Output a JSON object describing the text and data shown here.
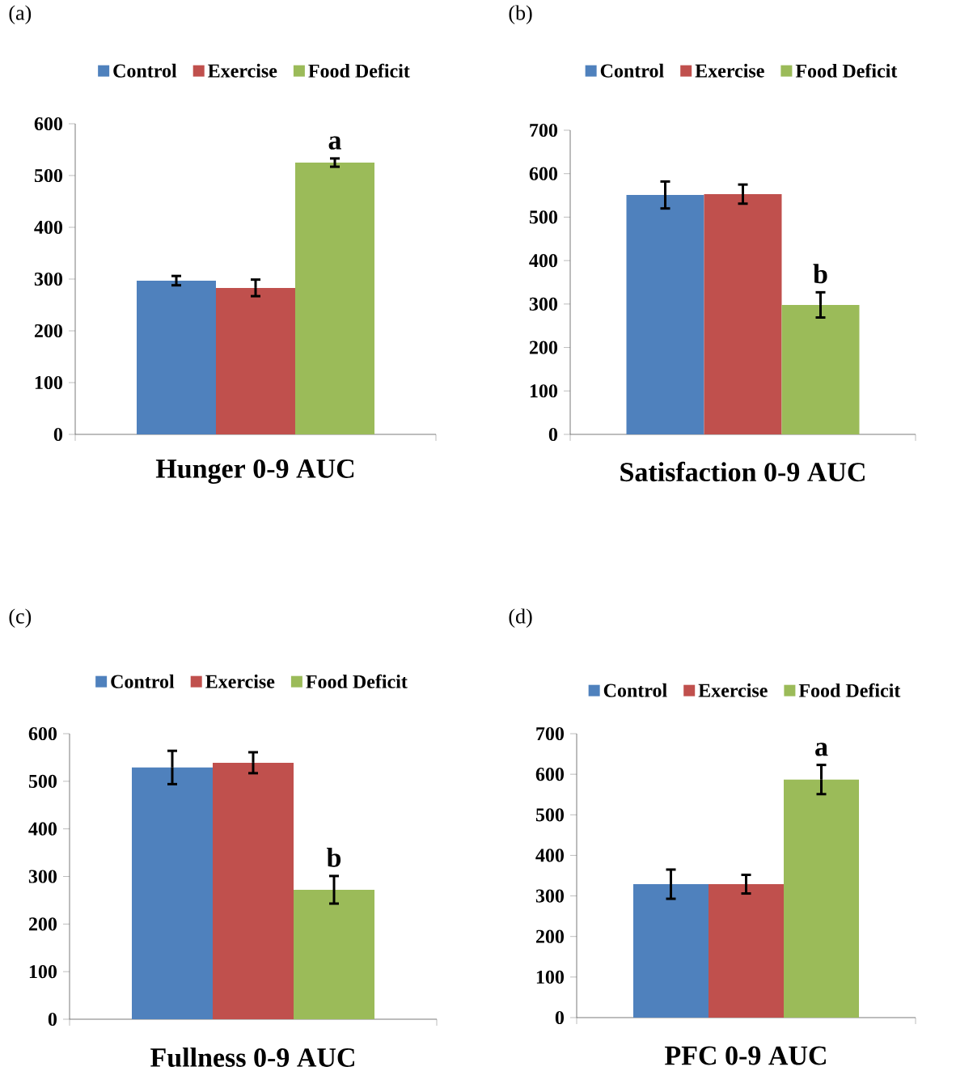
{
  "chart_data": [
    {
      "type": "bar",
      "title": "(a)",
      "xlabel": "Hunger 0-9 AUC",
      "categories": [
        null
      ],
      "ylim": [
        0,
        600
      ],
      "yticks": [
        0,
        100,
        200,
        300,
        400,
        500,
        600
      ],
      "legend": "top",
      "annotations": [
        "a"
      ],
      "series": [
        {
          "name": "Control",
          "color": "#4f81bd",
          "values": [
            297
          ],
          "errors": [
            9
          ]
        },
        {
          "name": "Exercise",
          "color": "#c0504d",
          "values": [
            283
          ],
          "errors": [
            16
          ]
        },
        {
          "name": "Food Deficit",
          "color": "#9bbb59",
          "values": [
            525
          ],
          "errors": [
            8
          ]
        }
      ]
    },
    {
      "type": "bar",
      "title": "(b)",
      "xlabel": "Satisfaction 0-9 AUC",
      "categories": [
        null
      ],
      "ylim": [
        0,
        700
      ],
      "yticks": [
        0,
        100,
        200,
        300,
        400,
        500,
        600,
        700
      ],
      "legend": "top",
      "annotations": [
        "b"
      ],
      "series": [
        {
          "name": "Control",
          "color": "#4f81bd",
          "values": [
            551
          ],
          "errors": [
            31
          ]
        },
        {
          "name": "Exercise",
          "color": "#c0504d",
          "values": [
            553
          ],
          "errors": [
            22
          ]
        },
        {
          "name": "Food Deficit",
          "color": "#9bbb59",
          "values": [
            298
          ],
          "errors": [
            29
          ]
        }
      ]
    },
    {
      "type": "bar",
      "title": "(c)",
      "xlabel": "Fullness 0-9 AUC",
      "categories": [
        null
      ],
      "ylim": [
        0,
        600
      ],
      "yticks": [
        0,
        100,
        200,
        300,
        400,
        500,
        600
      ],
      "legend": "top",
      "annotations": [
        "b"
      ],
      "series": [
        {
          "name": "Control",
          "color": "#4f81bd",
          "values": [
            529
          ],
          "errors": [
            35
          ]
        },
        {
          "name": "Exercise",
          "color": "#c0504d",
          "values": [
            539
          ],
          "errors": [
            22
          ]
        },
        {
          "name": "Food Deficit",
          "color": "#9bbb59",
          "values": [
            272
          ],
          "errors": [
            29
          ]
        }
      ]
    },
    {
      "type": "bar",
      "title": "(d)",
      "xlabel": "PFC 0-9 AUC",
      "categories": [
        null
      ],
      "ylim": [
        0,
        700
      ],
      "yticks": [
        0,
        100,
        200,
        300,
        400,
        500,
        600,
        700
      ],
      "legend": "top",
      "annotations": [
        "a"
      ],
      "series": [
        {
          "name": "Control",
          "color": "#4f81bd",
          "values": [
            329
          ],
          "errors": [
            36
          ]
        },
        {
          "name": "Exercise",
          "color": "#c0504d",
          "values": [
            329
          ],
          "errors": [
            23
          ]
        },
        {
          "name": "Food Deficit",
          "color": "#9bbb59",
          "values": [
            587
          ],
          "errors": [
            36
          ]
        }
      ]
    }
  ]
}
